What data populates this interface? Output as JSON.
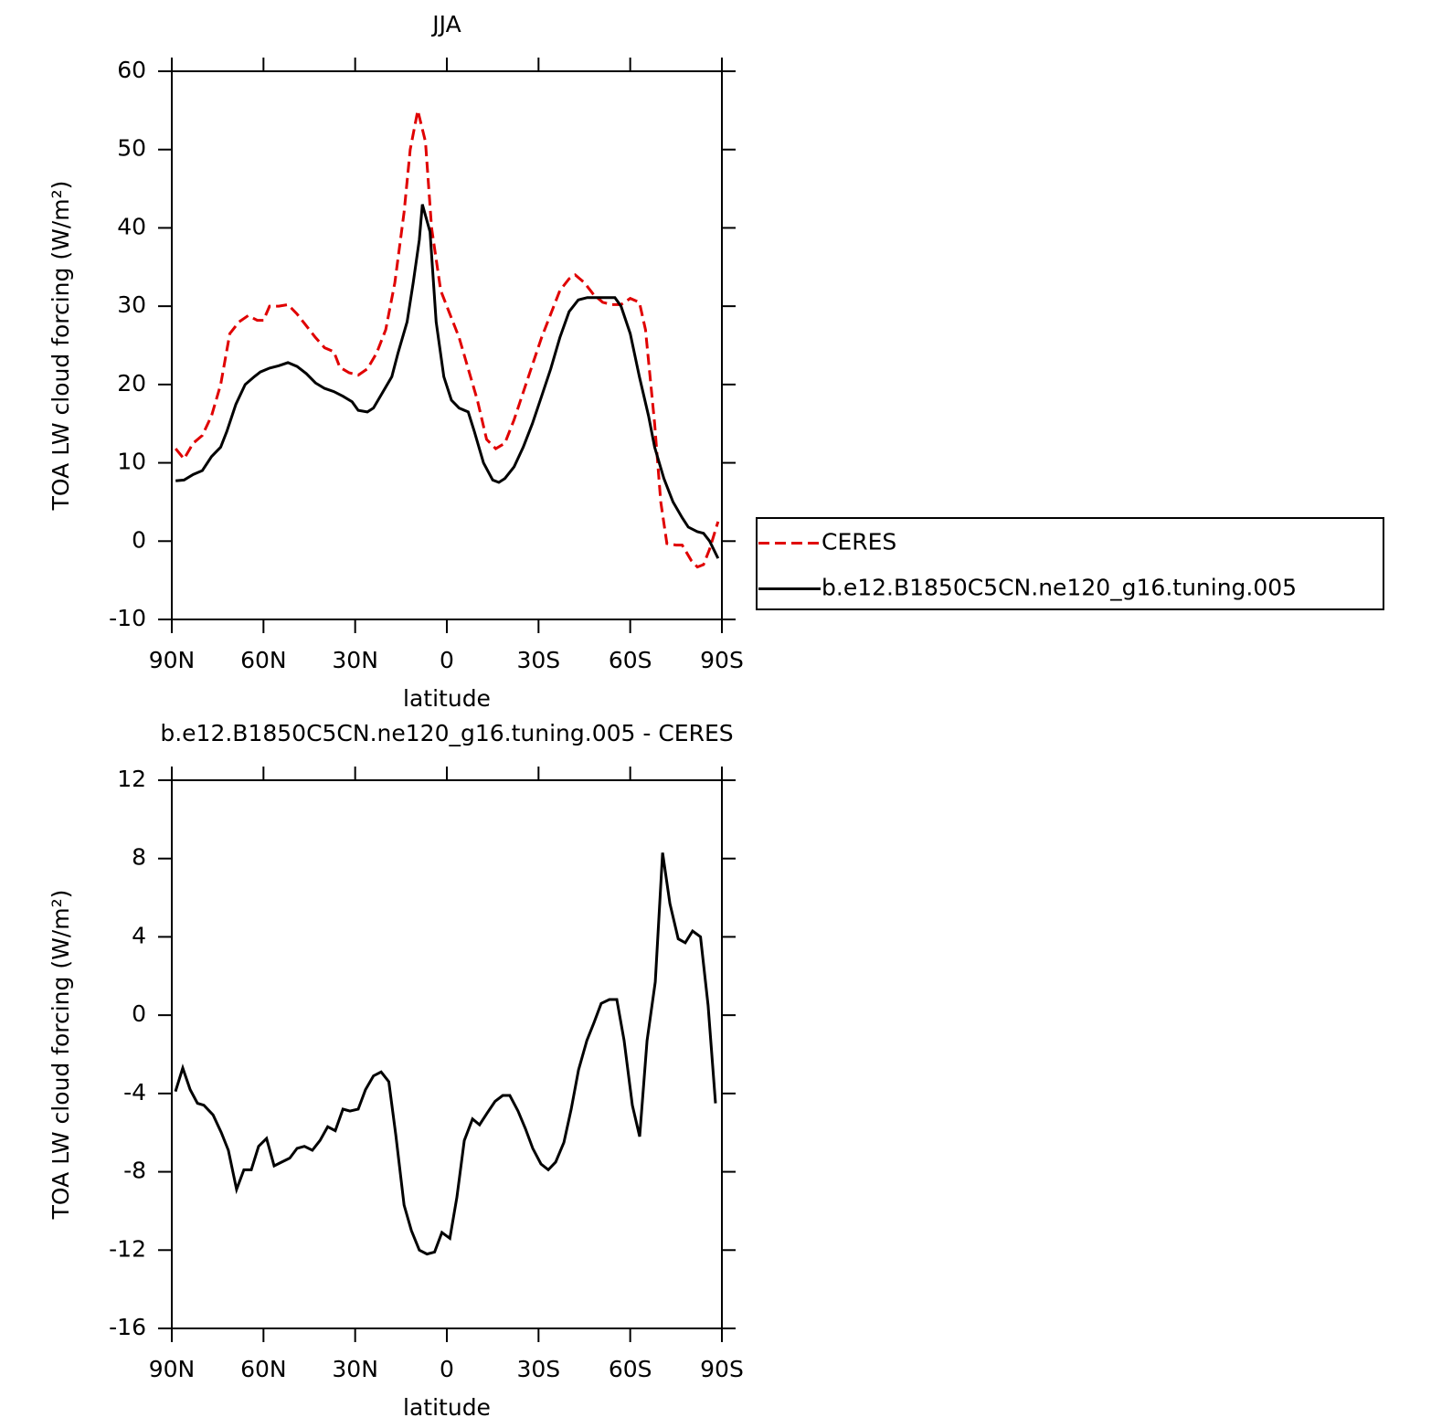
{
  "chart_data": [
    {
      "type": "line",
      "title": "JJA",
      "xlabel": "latitude",
      "ylabel": "TOA LW cloud forcing (W/m²)",
      "xlim": [
        90,
        -90
      ],
      "xticks": [
        {
          "value": 90,
          "label": "90N"
        },
        {
          "value": 60,
          "label": "60N"
        },
        {
          "value": 30,
          "label": "30N"
        },
        0,
        {
          "value": -30,
          "label": "30S"
        },
        {
          "value": -60,
          "label": "60S"
        },
        {
          "value": -90,
          "label": "90S"
        }
      ],
      "ylim": [
        -10,
        60
      ],
      "yticks": [
        -10,
        0,
        10,
        20,
        30,
        40,
        50,
        60
      ],
      "legend": "outside right",
      "series": [
        {
          "name": "CERES",
          "color": "#e00000",
          "linestyle": "dashed",
          "x": [
            88.75,
            86,
            83,
            80,
            77,
            74,
            71,
            68,
            65,
            62,
            60,
            58,
            55,
            52,
            49,
            46,
            43,
            40,
            37,
            35,
            32,
            29,
            26,
            23,
            20,
            17,
            14,
            12,
            9.5,
            7,
            5,
            2,
            -1,
            -4,
            -7,
            -10,
            -13,
            -16,
            -19,
            -22,
            -25,
            -28,
            -31,
            -34,
            -37,
            -40,
            -42,
            -45,
            -48,
            -51,
            -54,
            -57,
            -60,
            -63,
            -65,
            -68,
            -70,
            -72,
            -75,
            -77,
            -80,
            -82,
            -84,
            -86,
            -88.75
          ],
          "values": [
            11.8,
            10.5,
            12.5,
            13.5,
            16,
            20,
            26.5,
            28,
            28.8,
            28.2,
            28.2,
            30,
            30,
            30.2,
            29,
            27.5,
            26,
            24.7,
            24.2,
            22.2,
            21.5,
            21.2,
            22,
            24,
            27,
            33,
            42,
            50,
            55,
            51,
            40,
            32,
            29,
            26,
            22,
            18,
            13,
            11.8,
            12.5,
            15.5,
            19,
            22.5,
            26,
            29,
            32,
            33.5,
            34,
            33,
            31.5,
            30.5,
            30.2,
            30.2,
            31,
            30.5,
            27,
            15,
            5,
            -0.3,
            -0.5,
            -0.5,
            -2.5,
            -3.3,
            -3,
            -1,
            2.5
          ]
        },
        {
          "name": "b.e12.B1850C5CN.ne120_g16.tuning.005",
          "color": "#000000",
          "linestyle": "solid",
          "x": [
            88.75,
            86,
            83,
            80,
            77,
            74,
            72,
            69,
            66,
            63,
            61,
            58,
            55,
            52,
            49,
            46,
            43,
            40,
            37,
            34,
            31,
            29,
            26,
            24,
            21,
            18,
            16,
            13,
            11,
            9,
            8,
            5.5,
            3.5,
            1,
            -1.5,
            -4,
            -7,
            -9,
            -12,
            -15,
            -17,
            -19,
            -22,
            -25,
            -28,
            -31,
            -34,
            -37,
            -40,
            -43,
            -46,
            -49,
            -52,
            -55,
            -57,
            -60,
            -63,
            -66,
            -68,
            -71,
            -74,
            -77,
            -79,
            -82,
            -84,
            -86,
            -88.75
          ],
          "values": [
            7.7,
            7.8,
            8.5,
            9,
            10.8,
            12,
            14,
            17.5,
            20,
            21,
            21.6,
            22.1,
            22.4,
            22.8,
            22.3,
            21.4,
            20.2,
            19.5,
            19.1,
            18.5,
            17.8,
            16.7,
            16.5,
            17,
            19,
            21,
            24,
            28,
            33,
            38.5,
            43,
            39.5,
            28,
            21,
            18,
            17,
            16.5,
            14,
            10,
            7.8,
            7.5,
            8,
            9.5,
            12,
            15,
            18.5,
            22,
            26,
            29.3,
            30.8,
            31.1,
            31.1,
            31.1,
            31.1,
            30,
            26.5,
            21,
            16,
            12,
            8,
            5,
            3,
            1.8,
            1.2,
            1,
            0,
            -2.2
          ]
        }
      ]
    },
    {
      "type": "line",
      "title": "b.e12.B1850C5CN.ne120_g16.tuning.005 - CERES",
      "xlabel": "latitude",
      "ylabel": "TOA LW cloud forcing (W/m²)",
      "xlim": [
        90,
        -90
      ],
      "xticks": [
        {
          "value": 90,
          "label": "90N"
        },
        {
          "value": 60,
          "label": "60N"
        },
        {
          "value": 30,
          "label": "30N"
        },
        0,
        {
          "value": -30,
          "label": "30S"
        },
        {
          "value": -60,
          "label": "60S"
        },
        {
          "value": -90,
          "label": "90S"
        }
      ],
      "ylim": [
        -16,
        12
      ],
      "yticks": [
        -16,
        -12,
        -8,
        -4,
        0,
        4,
        8,
        12
      ],
      "series": [
        {
          "color": "#000000",
          "linestyle": "solid",
          "x": [
            88.8,
            86.4,
            84,
            81.6,
            79.5,
            76.5,
            73.8,
            71.5,
            68.8,
            66.4,
            64,
            61.6,
            59,
            56.5,
            54,
            51.4,
            49,
            46.6,
            44,
            41.5,
            39,
            36.5,
            34,
            31.7,
            29,
            26.6,
            24,
            21.5,
            19,
            16.7,
            14,
            11.6,
            9,
            6.5,
            4,
            1.6,
            -1,
            -3.3,
            -5.7,
            -8.4,
            -10.7,
            -13.2,
            -15.8,
            -18.3,
            -20.6,
            -23.3,
            -25.7,
            -28.1,
            -30.8,
            -33.2,
            -35.6,
            -38.3,
            -40.7,
            -43.1,
            -45.8,
            -48.1,
            -50.5,
            -53.2,
            -55.6,
            -58,
            -60.7,
            -63.1,
            -65.5,
            -68.2,
            -70.6,
            -73,
            -75.7,
            -78,
            -80.4,
            -83,
            -85.5,
            -87.9
          ],
          "values": [
            -3.9,
            -2.7,
            -3.8,
            -4.5,
            -4.6,
            -5.1,
            -6,
            -6.9,
            -8.9,
            -7.9,
            -7.9,
            -6.7,
            -6.3,
            -7.7,
            -7.5,
            -7.3,
            -6.8,
            -6.7,
            -6.9,
            -6.4,
            -5.7,
            -5.9,
            -4.8,
            -4.9,
            -4.8,
            -3.8,
            -3.1,
            -2.9,
            -3.4,
            -6.1,
            -9.7,
            -11,
            -12,
            -12.2,
            -12.1,
            -11.1,
            -11.4,
            -9.3,
            -6.4,
            -5.3,
            -5.6,
            -5,
            -4.4,
            -4.1,
            -4.1,
            -4.9,
            -5.8,
            -6.8,
            -7.6,
            -7.9,
            -7.5,
            -6.5,
            -4.8,
            -2.8,
            -1.3,
            -0.4,
            0.6,
            0.8,
            0.8,
            -1.3,
            -4.6,
            -6.2,
            -1.3,
            1.7,
            8.3,
            5.7,
            3.9,
            3.7,
            4.3,
            4,
            0.5,
            -4.5
          ]
        }
      ]
    }
  ]
}
